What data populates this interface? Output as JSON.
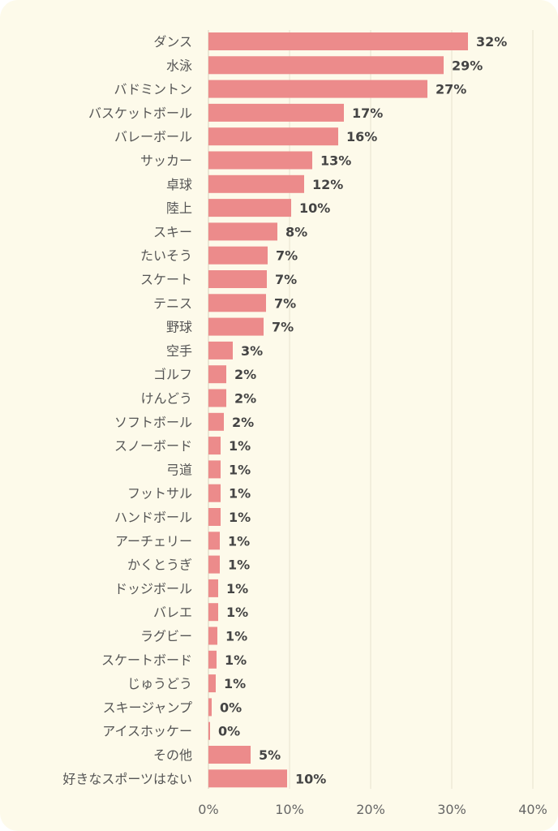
{
  "colors": {
    "background": "#fdfaea",
    "bar": "#ec8b8b",
    "grid": "#e6e2cf",
    "axis": "#d6d2bf"
  },
  "chart_data": {
    "type": "bar",
    "orientation": "horizontal",
    "categories": [
      "ダンス",
      "水泳",
      "バドミントン",
      "バスケットボール",
      "バレーボール",
      "サッカー",
      "卓球",
      "陸上",
      "スキー",
      "たいそう",
      "スケート",
      "テニス",
      "野球",
      "空手",
      "ゴルフ",
      "けんどう",
      "ソフトボール",
      "スノーボード",
      "弓道",
      "フットサル",
      "ハンドボール",
      "アーチェリー",
      "かくとうぎ",
      "ドッジボール",
      "バレエ",
      "ラグビー",
      "スケートボード",
      "じゅうどう",
      "スキージャンプ",
      "アイスホッケー",
      "その他",
      "好きなスポーツはない"
    ],
    "values": [
      32,
      29,
      27,
      16.7,
      16,
      12.8,
      11.8,
      10.2,
      8.5,
      7.3,
      7.2,
      7.1,
      6.8,
      3,
      2.2,
      2.2,
      1.9,
      1.5,
      1.5,
      1.5,
      1.5,
      1.4,
      1.4,
      1.2,
      1.2,
      1.1,
      1.0,
      0.9,
      0.4,
      0.2,
      5.2,
      9.7
    ],
    "value_labels": [
      "32%",
      "29%",
      "27%",
      "17%",
      "16%",
      "13%",
      "12%",
      "10%",
      "8%",
      "7%",
      "7%",
      "7%",
      "7%",
      "3%",
      "2%",
      "2%",
      "2%",
      "1%",
      "1%",
      "1%",
      "1%",
      "1%",
      "1%",
      "1%",
      "1%",
      "1%",
      "1%",
      "1%",
      "0%",
      "0%",
      "5%",
      "10%"
    ],
    "x_ticks": [
      "0%",
      "10%",
      "20%",
      "30%",
      "40%"
    ],
    "xlim": [
      0,
      40
    ],
    "grid": true
  }
}
